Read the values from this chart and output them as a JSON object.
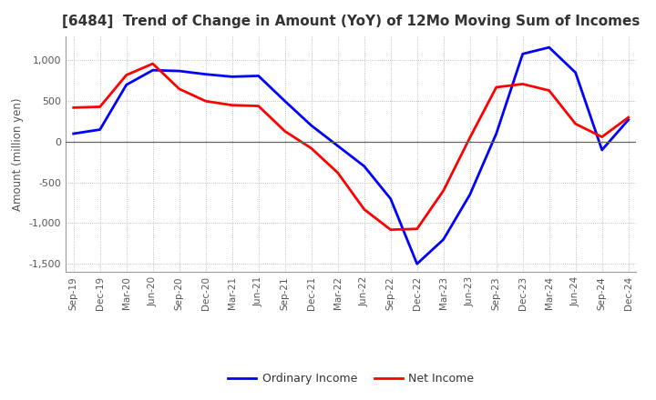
{
  "title": "[6484]  Trend of Change in Amount (YoY) of 12Mo Moving Sum of Incomes",
  "ylabel": "Amount (million yen)",
  "ylim": [
    -1600,
    1300
  ],
  "yticks": [
    -1500,
    -1000,
    -500,
    0,
    500,
    1000
  ],
  "x_labels": [
    "Sep-19",
    "Dec-19",
    "Mar-20",
    "Jun-20",
    "Sep-20",
    "Dec-20",
    "Mar-21",
    "Jun-21",
    "Sep-21",
    "Dec-21",
    "Mar-22",
    "Jun-22",
    "Sep-22",
    "Dec-22",
    "Mar-23",
    "Jun-23",
    "Sep-23",
    "Dec-23",
    "Mar-24",
    "Jun-24",
    "Sep-24",
    "Dec-24"
  ],
  "ordinary_income": [
    100,
    150,
    700,
    880,
    870,
    830,
    800,
    810,
    500,
    200,
    -50,
    -300,
    -700,
    -1500,
    -1200,
    -650,
    100,
    1080,
    1160,
    850,
    -100,
    270
  ],
  "net_income": [
    420,
    430,
    820,
    960,
    650,
    500,
    450,
    440,
    130,
    -80,
    -380,
    -830,
    -1080,
    -1070,
    -600,
    50,
    670,
    710,
    630,
    220,
    60,
    300
  ],
  "ordinary_color": "#0000ff",
  "net_color": "#ff0000",
  "legend_ordinary": "Ordinary Income",
  "legend_net": "Net Income",
  "background_color": "#ffffff",
  "grid_color": "#aaaaaa",
  "title_color": "#333333",
  "tick_color": "#555555"
}
